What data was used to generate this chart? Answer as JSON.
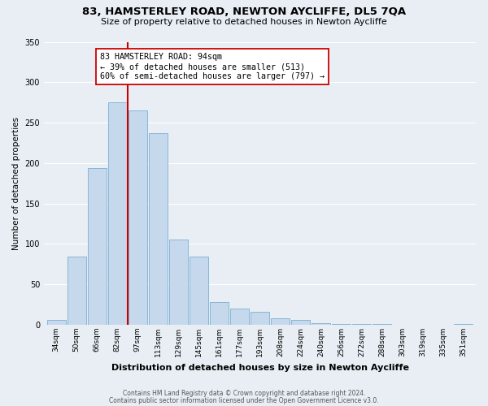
{
  "title": "83, HAMSTERLEY ROAD, NEWTON AYCLIFFE, DL5 7QA",
  "subtitle": "Size of property relative to detached houses in Newton Aycliffe",
  "xlabel": "Distribution of detached houses by size in Newton Aycliffe",
  "ylabel": "Number of detached properties",
  "bar_labels": [
    "34sqm",
    "50sqm",
    "66sqm",
    "82sqm",
    "97sqm",
    "113sqm",
    "129sqm",
    "145sqm",
    "161sqm",
    "177sqm",
    "193sqm",
    "208sqm",
    "224sqm",
    "240sqm",
    "256sqm",
    "272sqm",
    "288sqm",
    "303sqm",
    "319sqm",
    "335sqm",
    "351sqm"
  ],
  "bar_values": [
    6,
    84,
    194,
    275,
    265,
    237,
    105,
    84,
    28,
    20,
    16,
    8,
    6,
    2,
    1,
    1,
    1,
    0,
    0,
    0,
    1
  ],
  "bar_color": "#c6d9ec",
  "bar_edge_color": "#7aafd4",
  "vline_color": "#cc0000",
  "annotation_text": "83 HAMSTERLEY ROAD: 94sqm\n← 39% of detached houses are smaller (513)\n60% of semi-detached houses are larger (797) →",
  "annotation_box_color": "#ffffff",
  "annotation_box_edge": "#cc0000",
  "ylim": [
    0,
    350
  ],
  "yticks": [
    0,
    50,
    100,
    150,
    200,
    250,
    300,
    350
  ],
  "footer_line1": "Contains HM Land Registry data © Crown copyright and database right 2024.",
  "footer_line2": "Contains public sector information licensed under the Open Government Licence v3.0.",
  "bg_color": "#e8eef4",
  "grid_color": "#ffffff",
  "title_fontsize": 9.5,
  "subtitle_fontsize": 8,
  "ylabel_fontsize": 7.5,
  "xlabel_fontsize": 8,
  "tick_fontsize": 6.5,
  "footer_fontsize": 5.5,
  "annot_fontsize": 7.2
}
